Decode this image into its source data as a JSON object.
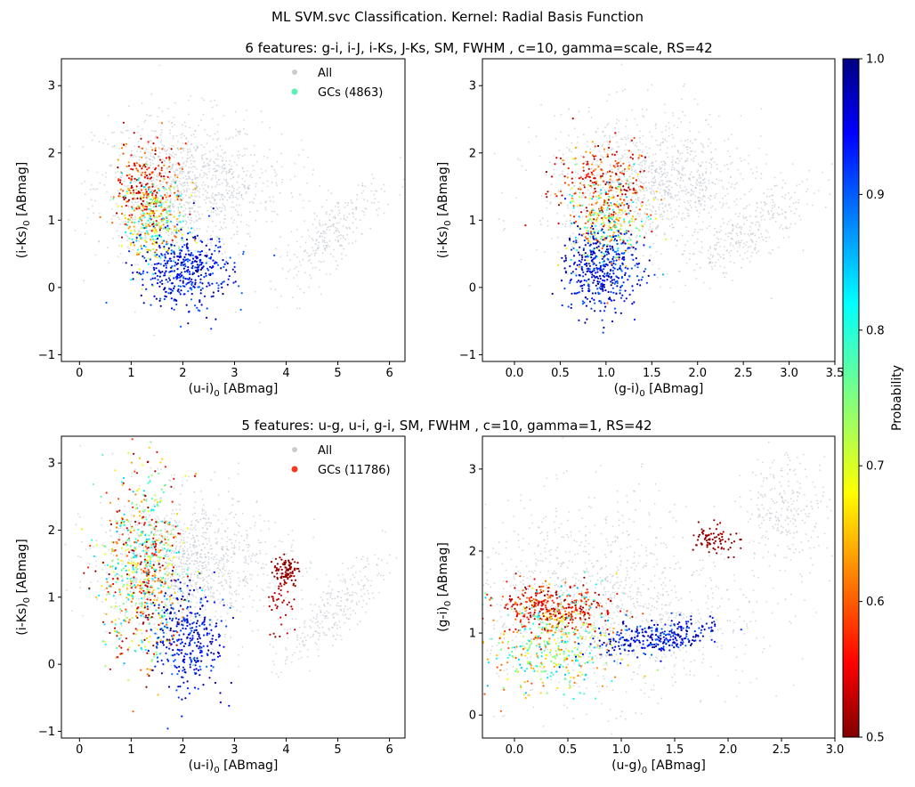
{
  "suptitle": "ML SVM.svc Classification. Kernel: Radial Basis Function",
  "row_titles": [
    "6 features: g-i, i-J, i-Ks, J-Ks, SM, FWHM , c=10, gamma=scale, RS=42",
    "5 features: u-g, u-i, g-i, SM, FWHM , c=10, gamma=1, RS=42"
  ],
  "colorbar": {
    "label": "Probability",
    "min": 0.5,
    "max": 1.0,
    "ticks": [
      "0.5",
      "0.6",
      "0.7",
      "0.8",
      "0.9",
      "1.0"
    ],
    "colormap": "jet_r"
  },
  "chart_data": [
    {
      "type": "scatter",
      "panel": "top-left",
      "xlabel": "(u-i)",
      "ylabel": "(i-Ks)",
      "unit": "[ABmag]",
      "subscript": "0",
      "xlim": [
        -0.35,
        6.3
      ],
      "ylim": [
        -1.1,
        3.4
      ],
      "xticks": [
        "0",
        "1",
        "2",
        "3",
        "4",
        "5",
        "6"
      ],
      "yticks": [
        "−1",
        "0",
        "1",
        "2",
        "3"
      ],
      "legend": {
        "position": "top-center",
        "all_label": "All",
        "gc_label": "GCs (4863)",
        "gc_color": "#5cf0b6"
      },
      "background": [
        {
          "cx": 1.9,
          "cy": 1.5,
          "sx": 0.8,
          "sy": 0.55,
          "n": 950
        },
        {
          "cx": 4.9,
          "cy": 0.8,
          "sx": 0.5,
          "sy": 0.4,
          "rho": 0.8,
          "n": 260
        },
        {
          "cx": 3.0,
          "cy": 1.5,
          "sx": 0.8,
          "sy": 0.3,
          "n": 180
        }
      ],
      "gc_clusters": [
        {
          "cx": 1.3,
          "cy": 1.45,
          "sx": 0.3,
          "sy": 0.35,
          "n": 260,
          "prob": [
            0.5,
            0.65
          ]
        },
        {
          "cx": 1.45,
          "cy": 0.95,
          "sx": 0.3,
          "sy": 0.35,
          "n": 260,
          "prob": [
            0.6,
            0.85
          ]
        },
        {
          "cx": 2.05,
          "cy": 0.25,
          "sx": 0.45,
          "sy": 0.28,
          "n": 420,
          "prob": [
            0.88,
            1.0
          ]
        }
      ]
    },
    {
      "type": "scatter",
      "panel": "top-right",
      "xlabel": "(g-i)",
      "ylabel": "(i-Ks)",
      "unit": "[ABmag]",
      "subscript": "0",
      "xlim": [
        -0.35,
        3.5
      ],
      "ylim": [
        -1.1,
        3.4
      ],
      "xticks": [
        "0.0",
        "0.5",
        "1.0",
        "1.5",
        "2.0",
        "2.5",
        "3.0",
        "3.5"
      ],
      "yticks": [
        "−1",
        "0",
        "1",
        "2",
        "3"
      ],
      "background": [
        {
          "cx": 1.4,
          "cy": 1.5,
          "sx": 0.55,
          "sy": 0.55,
          "n": 950
        },
        {
          "cx": 2.6,
          "cy": 0.85,
          "sx": 0.35,
          "sy": 0.35,
          "rho": 0.8,
          "n": 260
        },
        {
          "cx": 1.9,
          "cy": 1.6,
          "sx": 0.5,
          "sy": 0.3,
          "n": 180
        }
      ],
      "gc_clusters": [
        {
          "cx": 0.95,
          "cy": 1.45,
          "sx": 0.25,
          "sy": 0.35,
          "n": 260,
          "prob": [
            0.5,
            0.65
          ]
        },
        {
          "cx": 1.0,
          "cy": 0.95,
          "sx": 0.22,
          "sy": 0.35,
          "n": 260,
          "prob": [
            0.6,
            0.85
          ]
        },
        {
          "cx": 0.95,
          "cy": 0.25,
          "sx": 0.2,
          "sy": 0.3,
          "n": 420,
          "prob": [
            0.88,
            1.0
          ]
        }
      ]
    },
    {
      "type": "scatter",
      "panel": "bottom-left",
      "xlabel": "(u-i)",
      "ylabel": "(i-Ks)",
      "unit": "[ABmag]",
      "subscript": "0",
      "xlim": [
        -0.35,
        6.3
      ],
      "ylim": [
        -1.1,
        3.4
      ],
      "xticks": [
        "0",
        "1",
        "2",
        "3",
        "4",
        "5",
        "6"
      ],
      "yticks": [
        "−1",
        "0",
        "1",
        "2",
        "3"
      ],
      "legend": {
        "position": "top-center",
        "all_label": "All",
        "gc_label": "GCs (11786)",
        "gc_color": "#f03a1e"
      },
      "background": [
        {
          "cx": 1.9,
          "cy": 1.5,
          "sx": 0.8,
          "sy": 0.55,
          "n": 950
        },
        {
          "cx": 4.9,
          "cy": 0.8,
          "sx": 0.5,
          "sy": 0.4,
          "rho": 0.8,
          "n": 260
        },
        {
          "cx": 3.0,
          "cy": 1.5,
          "sx": 0.8,
          "sy": 0.3,
          "n": 180
        }
      ],
      "gc_clusters": [
        {
          "cx": 1.25,
          "cy": 1.4,
          "sx": 0.4,
          "sy": 0.7,
          "n": 700,
          "prob": [
            0.5,
            0.85
          ]
        },
        {
          "cx": 2.1,
          "cy": 0.4,
          "sx": 0.35,
          "sy": 0.4,
          "n": 330,
          "prob": [
            0.88,
            1.0
          ]
        },
        {
          "cx": 4.0,
          "cy": 1.4,
          "sx": 0.12,
          "sy": 0.1,
          "n": 90,
          "prob": [
            0.5,
            0.52
          ]
        },
        {
          "cx": 3.9,
          "cy": 0.85,
          "sx": 0.15,
          "sy": 0.25,
          "n": 40,
          "prob": [
            0.5,
            0.55
          ]
        }
      ]
    },
    {
      "type": "scatter",
      "panel": "bottom-right",
      "xlabel": "(u-g)",
      "ylabel": "(g-i)",
      "unit": "[ABmag]",
      "subscript": "0",
      "xlim": [
        -0.3,
        3.0
      ],
      "ylim": [
        -0.28,
        3.4
      ],
      "xticks": [
        "0.0",
        "0.5",
        "1.0",
        "1.5",
        "2.0",
        "2.5",
        "3.0"
      ],
      "yticks": [
        "0",
        "1",
        "2",
        "3"
      ],
      "background": [
        {
          "cx": 0.7,
          "cy": 1.4,
          "sx": 0.6,
          "sy": 0.6,
          "n": 950
        },
        {
          "cx": 2.55,
          "cy": 2.5,
          "sx": 0.2,
          "sy": 0.35,
          "n": 260
        },
        {
          "cx": 1.5,
          "cy": 1.1,
          "sx": 0.6,
          "sy": 0.4,
          "n": 180
        }
      ],
      "gc_clusters": [
        {
          "cx": 0.35,
          "cy": 1.3,
          "sx": 0.3,
          "sy": 0.15,
          "n": 330,
          "prob": [
            0.5,
            0.62
          ]
        },
        {
          "cx": 0.35,
          "cy": 0.85,
          "sx": 0.3,
          "sy": 0.3,
          "n": 400,
          "prob": [
            0.6,
            0.85
          ]
        },
        {
          "cx": 1.35,
          "cy": 0.95,
          "sx": 0.3,
          "sy": 0.12,
          "rho": 0.5,
          "n": 300,
          "prob": [
            0.88,
            1.0
          ]
        },
        {
          "cx": 1.85,
          "cy": 2.15,
          "sx": 0.1,
          "sy": 0.1,
          "n": 80,
          "prob": [
            0.5,
            0.52
          ]
        }
      ]
    }
  ]
}
